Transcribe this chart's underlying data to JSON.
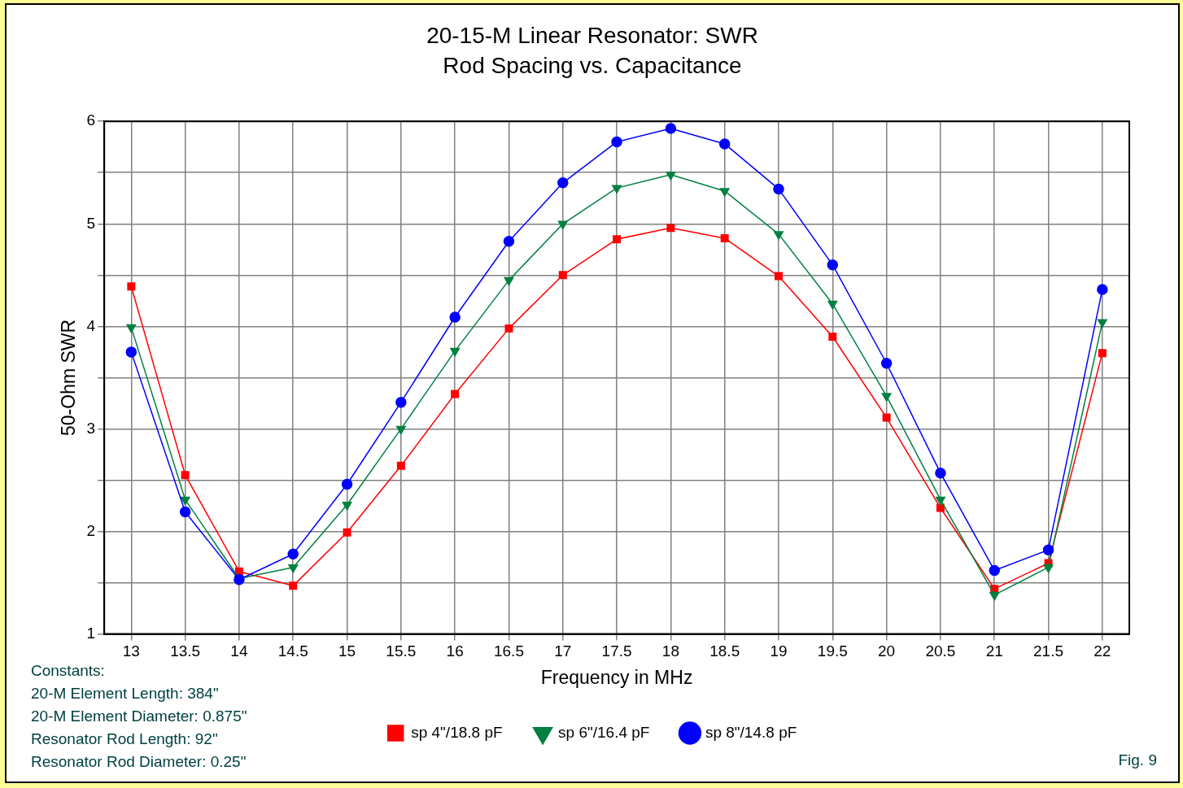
{
  "chart_data": {
    "type": "line",
    "title": "20-15-M Linear Resonator: SWR",
    "subtitle": "Rod Spacing vs. Capacitance",
    "xlabel": "Frequency in MHz",
    "ylabel": "50-Ohm SWR",
    "x": [
      13,
      13.5,
      14,
      14.5,
      15,
      15.5,
      16,
      16.5,
      17,
      17.5,
      18,
      18.5,
      19,
      19.5,
      20,
      20.5,
      21,
      21.5,
      22
    ],
    "series": [
      {
        "name": "sp 4\"/18.8 pF",
        "color": "#ff0000",
        "marker": "square",
        "values": [
          4.39,
          2.55,
          1.61,
          1.47,
          1.99,
          2.64,
          3.34,
          3.98,
          4.5,
          4.85,
          4.96,
          4.86,
          4.49,
          3.9,
          3.11,
          2.23,
          1.44,
          1.69,
          3.74
        ]
      },
      {
        "name": "sp 6\"/16.4 pF",
        "color": "#008040",
        "marker": "triangle",
        "values": [
          3.99,
          2.31,
          1.54,
          1.65,
          2.26,
          3.0,
          3.76,
          4.45,
          5.0,
          5.35,
          5.48,
          5.32,
          4.9,
          4.22,
          3.32,
          2.31,
          1.38,
          1.65,
          4.04
        ]
      },
      {
        "name": "sp 8\"/14.8 pF",
        "color": "#0000ff",
        "marker": "circle",
        "values": [
          3.75,
          2.19,
          1.53,
          1.78,
          2.46,
          3.26,
          4.09,
          4.83,
          5.4,
          5.8,
          5.93,
          5.78,
          5.34,
          4.6,
          3.64,
          2.57,
          1.62,
          1.82,
          4.36
        ]
      }
    ],
    "xlim": [
      12.75,
      22.25
    ],
    "xticks": [
      13,
      13.5,
      14,
      14.5,
      15,
      15.5,
      16,
      16.5,
      17,
      17.5,
      18,
      18.5,
      19,
      19.5,
      20,
      20.5,
      21,
      21.5,
      22
    ],
    "ylim": [
      1,
      6
    ],
    "yticks": [
      1,
      {
        "value": 1.5,
        "label": null
      },
      2,
      {
        "value": 2.5,
        "label": null
      },
      3,
      {
        "value": 3.5,
        "label": null
      },
      4,
      {
        "value": 4.5,
        "label": null
      },
      5,
      {
        "value": 5.5,
        "label": null
      },
      6
    ],
    "grid": true,
    "legend": "bottom",
    "line_style": "solid",
    "annotations": [
      "Constants:",
      "20-M Element Length: 384\"",
      "20-M Element Diameter: 0.875\"",
      "Resonator Rod Length: 92\"",
      "Resonator Rod Diameter: 0.25\"",
      "Fig. 9"
    ]
  }
}
